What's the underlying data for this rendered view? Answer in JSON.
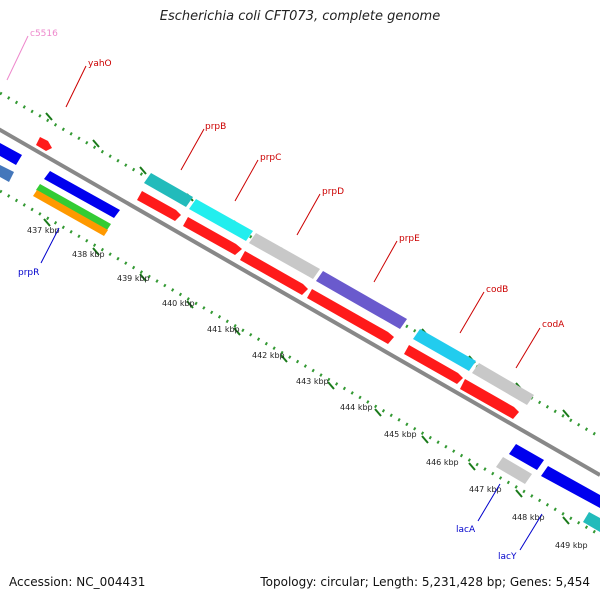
{
  "title": "Escherichia coli CFT073, complete genome",
  "footer": {
    "accession": "Accession: NC_004431",
    "stats": "Topology: circular; Length: 5,231,428 bp; Genes: 5,454"
  },
  "ticks": [
    "437 kbp",
    "438 kbp",
    "439 kbp",
    "440 kbp",
    "441 kbp",
    "442 kbp",
    "443 kbp",
    "444 kbp",
    "445 kbp",
    "446 kbp",
    "447 kbp",
    "448 kbp",
    "449 kbp"
  ],
  "genes": [
    {
      "id": "c5516",
      "label": "c5516",
      "color": "#ee88cc"
    },
    {
      "id": "yahO",
      "label": "yahO",
      "color": "#cc0000"
    },
    {
      "id": "prpB",
      "label": "prpB",
      "color": "#cc0000"
    },
    {
      "id": "prpC",
      "label": "prpC",
      "color": "#cc0000"
    },
    {
      "id": "prpD",
      "label": "prpD",
      "color": "#cc0000"
    },
    {
      "id": "prpE",
      "label": "prpE",
      "color": "#cc0000"
    },
    {
      "id": "codB",
      "label": "codB",
      "color": "#cc0000"
    },
    {
      "id": "codA",
      "label": "codA",
      "color": "#cc0000"
    },
    {
      "id": "prpR",
      "label": "prpR",
      "color": "#0000cc"
    },
    {
      "id": "lacA",
      "label": "lacA",
      "color": "#0000cc"
    },
    {
      "id": "lacY",
      "label": "lacY",
      "color": "#0000cc"
    }
  ],
  "colors": {
    "backbone": "#888888",
    "dots": "#339933",
    "forward": "#ff1a1a",
    "reverse": "#0000ee",
    "cyan": "#22eeee",
    "teal": "#22bbbb",
    "grey": "#c8c8c8",
    "purple": "#6a5acd",
    "green": "#33cc33",
    "orange": "#ff9900",
    "steel": "#4477bb"
  }
}
